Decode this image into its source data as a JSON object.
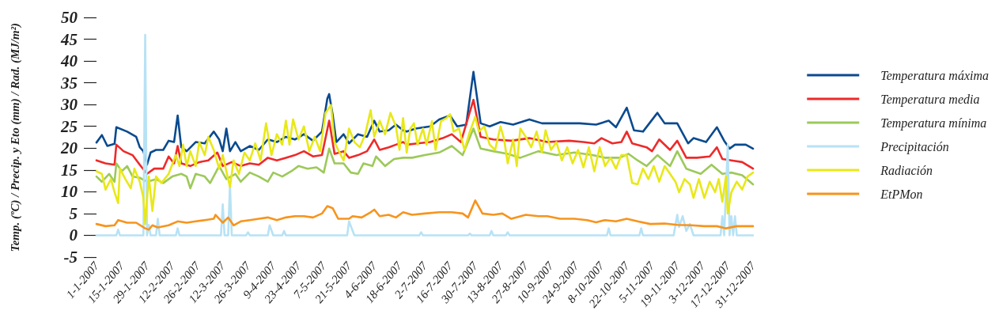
{
  "chart_data": {
    "type": "line",
    "ylabel": "Temp. (ºC) / Precip. y Eto (mm) / Rad. (MJ/m²)",
    "legend": "right",
    "grid": false,
    "marker": "none",
    "line_style": "solid",
    "xlim": [
      "2007-01-01",
      "2007-12-31"
    ],
    "xticks": [
      {
        "value": "2007-01-01",
        "label": "1-1-2007"
      },
      {
        "value": "2007-01-15",
        "label": "15-1-2007"
      },
      {
        "value": "2007-01-29",
        "label": "29-1-2007"
      },
      {
        "value": "2007-02-12",
        "label": "12-2-2007"
      },
      {
        "value": "2007-02-26",
        "label": "26-2-2007"
      },
      {
        "value": "2007-03-12",
        "label": "12-3-2007"
      },
      {
        "value": "2007-03-26",
        "label": "26-3-2007"
      },
      {
        "value": "2007-04-09",
        "label": "9-4-2007"
      },
      {
        "value": "2007-04-23",
        "label": "23-4-2007"
      },
      {
        "value": "2007-05-07",
        "label": "7-5-2007"
      },
      {
        "value": "2007-05-21",
        "label": "21-5-2007"
      },
      {
        "value": "2007-06-04",
        "label": "4-6-2007"
      },
      {
        "value": "2007-06-18",
        "label": "18-6-2007"
      },
      {
        "value": "2007-07-02",
        "label": "2-7-2007"
      },
      {
        "value": "2007-07-16",
        "label": "16-7-2007"
      },
      {
        "value": "2007-07-30",
        "label": "30-7-2007"
      },
      {
        "value": "2007-08-13",
        "label": "13-8-2007"
      },
      {
        "value": "2007-08-27",
        "label": "27-8-2007"
      },
      {
        "value": "2007-09-10",
        "label": "10-9-2007"
      },
      {
        "value": "2007-09-24",
        "label": "24-9-2007"
      },
      {
        "value": "2007-10-08",
        "label": "8-10-2007"
      },
      {
        "value": "2007-10-22",
        "label": "22-10-2007"
      },
      {
        "value": "2007-11-05",
        "label": "5-11-2007"
      },
      {
        "value": "2007-11-19",
        "label": "19-11-2007"
      },
      {
        "value": "2007-12-03",
        "label": "3-12-2007"
      },
      {
        "value": "2007-12-17",
        "label": "17-12-2007"
      },
      {
        "value": "2007-12-31",
        "label": "31-12-2007"
      }
    ],
    "ylim": [
      -5,
      50
    ],
    "yticks": [
      -5,
      0,
      5,
      10,
      15,
      20,
      25,
      30,
      35,
      40,
      45,
      50
    ],
    "series": [
      {
        "name": "Temperatura máxima",
        "color": "#0a4a8f",
        "x": [
          "2007-01-01",
          "2007-01-04",
          "2007-01-07",
          "2007-01-11",
          "2007-01-12",
          "2007-01-18",
          "2007-01-23",
          "2007-01-25",
          "2007-01-27",
          "2007-01-29",
          "2007-01-31",
          "2007-02-03",
          "2007-02-07",
          "2007-02-10",
          "2007-02-13",
          "2007-02-15",
          "2007-02-17",
          "2007-02-20",
          "2007-02-25",
          "2007-03-02",
          "2007-03-07",
          "2007-03-10",
          "2007-03-12",
          "2007-03-14",
          "2007-03-16",
          "2007-03-19",
          "2007-03-22",
          "2007-03-27",
          "2007-04-01",
          "2007-04-06",
          "2007-04-11",
          "2007-04-16",
          "2007-04-21",
          "2007-04-26",
          "2007-05-01",
          "2007-05-06",
          "2007-05-09",
          "2007-05-10",
          "2007-05-12",
          "2007-05-14",
          "2007-05-18",
          "2007-05-21",
          "2007-05-26",
          "2007-05-31",
          "2007-06-04",
          "2007-06-07",
          "2007-06-12",
          "2007-06-16",
          "2007-06-20",
          "2007-06-22",
          "2007-06-27",
          "2007-07-05",
          "2007-07-10",
          "2007-07-16",
          "2007-07-20",
          "2007-07-25",
          "2007-07-29",
          "2007-08-02",
          "2007-08-07",
          "2007-08-13",
          "2007-08-20",
          "2007-08-29",
          "2007-09-05",
          "2007-09-14",
          "2007-09-26",
          "2007-10-05",
          "2007-10-12",
          "2007-10-16",
          "2007-10-22",
          "2007-10-26",
          "2007-10-31",
          "2007-11-08",
          "2007-11-12",
          "2007-11-19",
          "2007-11-25",
          "2007-11-28",
          "2007-12-05",
          "2007-12-11",
          "2007-12-15",
          "2007-12-18",
          "2007-12-21",
          "2007-12-27",
          "2007-12-31"
        ],
        "values": [
          21.3,
          23,
          20.5,
          21,
          24.8,
          23.8,
          22.6,
          20.2,
          19.3,
          16.2,
          19,
          19.6,
          19.6,
          21.7,
          21.4,
          27.5,
          20.2,
          19.3,
          21.4,
          21.1,
          23.8,
          22,
          19.3,
          24.5,
          19.3,
          21.4,
          19.3,
          20.5,
          19.6,
          22,
          21.4,
          22.6,
          22,
          23.2,
          21.7,
          23.8,
          31.4,
          32.4,
          27.5,
          21.4,
          23.2,
          21.1,
          23.2,
          22.6,
          26.3,
          23.8,
          24.1,
          25.4,
          24.1,
          23.8,
          24.5,
          25,
          26.6,
          27.5,
          25,
          25.4,
          37.5,
          25.7,
          25,
          26,
          25.4,
          26.6,
          25.7,
          25.7,
          25.7,
          25.4,
          26.3,
          24.8,
          29.3,
          24.1,
          23.8,
          28.1,
          25.7,
          25.7,
          21.1,
          22.3,
          21.4,
          24.8,
          21.7,
          19.9,
          20.8,
          20.8,
          19.9
        ]
      },
      {
        "name": "Temperatura media",
        "color": "#ee2a2a",
        "x": [
          "2007-01-01",
          "2007-01-06",
          "2007-01-11",
          "2007-01-12",
          "2007-01-16",
          "2007-01-21",
          "2007-01-25",
          "2007-01-29",
          "2007-02-02",
          "2007-02-07",
          "2007-02-10",
          "2007-02-13",
          "2007-02-15",
          "2007-02-17",
          "2007-02-22",
          "2007-02-27",
          "2007-03-04",
          "2007-03-09",
          "2007-03-12",
          "2007-03-17",
          "2007-03-22",
          "2007-03-27",
          "2007-04-01",
          "2007-04-06",
          "2007-04-11",
          "2007-04-16",
          "2007-04-21",
          "2007-04-26",
          "2007-05-01",
          "2007-05-06",
          "2007-05-10",
          "2007-05-13",
          "2007-05-18",
          "2007-05-21",
          "2007-05-26",
          "2007-05-31",
          "2007-06-04",
          "2007-06-07",
          "2007-06-12",
          "2007-06-16",
          "2007-06-20",
          "2007-06-22",
          "2007-06-28",
          "2007-07-05",
          "2007-07-12",
          "2007-07-17",
          "2007-07-22",
          "2007-07-29",
          "2007-08-02",
          "2007-08-09",
          "2007-08-19",
          "2007-08-29",
          "2007-09-08",
          "2007-09-20",
          "2007-09-28",
          "2007-10-04",
          "2007-10-08",
          "2007-10-14",
          "2007-10-19",
          "2007-10-22",
          "2007-10-25",
          "2007-11-02",
          "2007-11-05",
          "2007-11-09",
          "2007-11-15",
          "2007-11-19",
          "2007-11-24",
          "2007-11-30",
          "2007-12-07",
          "2007-12-11",
          "2007-12-14",
          "2007-12-19",
          "2007-12-25",
          "2007-12-31"
        ],
        "values": [
          17.2,
          16.5,
          16.2,
          20.8,
          19.3,
          18.4,
          16.2,
          14.1,
          15.3,
          15.3,
          18.1,
          16.5,
          20.5,
          16.5,
          15.9,
          16.8,
          17.2,
          19,
          15.9,
          16.8,
          15.9,
          16.5,
          16.2,
          17.8,
          17.2,
          17.8,
          18.4,
          19.3,
          18.1,
          18.4,
          26.3,
          18.7,
          19.3,
          17.8,
          18.4,
          19.3,
          22,
          19.6,
          20.2,
          20.8,
          21.4,
          20.8,
          21.1,
          21.4,
          22.3,
          23.2,
          21.4,
          31.1,
          22.6,
          22,
          21.7,
          22.3,
          21.4,
          21.7,
          21.4,
          21.1,
          22.3,
          21.1,
          21.4,
          23.8,
          21.1,
          20.2,
          19.3,
          22,
          19.6,
          21.7,
          17.8,
          17.8,
          18.1,
          20.2,
          17.5,
          17.2,
          16.8,
          15.3
        ]
      },
      {
        "name": "Temperatura mínima",
        "color": "#9dc95a",
        "x": [
          "2007-01-01",
          "2007-01-04",
          "2007-01-08",
          "2007-01-11",
          "2007-01-12",
          "2007-01-15",
          "2007-01-18",
          "2007-01-21",
          "2007-01-25",
          "2007-01-29",
          "2007-02-03",
          "2007-02-07",
          "2007-02-12",
          "2007-02-17",
          "2007-02-20",
          "2007-02-22",
          "2007-02-25",
          "2007-03-02",
          "2007-03-05",
          "2007-03-10",
          "2007-03-14",
          "2007-03-19",
          "2007-03-22",
          "2007-03-27",
          "2007-04-01",
          "2007-04-06",
          "2007-04-09",
          "2007-04-14",
          "2007-04-19",
          "2007-04-23",
          "2007-04-28",
          "2007-05-03",
          "2007-05-07",
          "2007-05-10",
          "2007-05-13",
          "2007-05-18",
          "2007-05-22",
          "2007-05-26",
          "2007-05-29",
          "2007-06-03",
          "2007-06-05",
          "2007-06-10",
          "2007-06-15",
          "2007-06-20",
          "2007-06-25",
          "2007-07-02",
          "2007-07-10",
          "2007-07-17",
          "2007-07-23",
          "2007-07-29",
          "2007-08-02",
          "2007-08-09",
          "2007-08-17",
          "2007-08-24",
          "2007-09-03",
          "2007-09-13",
          "2007-09-23",
          "2007-10-03",
          "2007-10-10",
          "2007-10-18",
          "2007-10-23",
          "2007-10-28",
          "2007-11-02",
          "2007-11-08",
          "2007-11-15",
          "2007-11-19",
          "2007-11-24",
          "2007-12-02",
          "2007-12-08",
          "2007-12-14",
          "2007-12-19",
          "2007-12-25",
          "2007-12-31"
        ],
        "values": [
          13.5,
          12.3,
          14.1,
          12.3,
          16.5,
          14.7,
          15.9,
          13.5,
          13.2,
          12.3,
          12.9,
          12,
          13.5,
          14.1,
          13.5,
          10.8,
          14.1,
          13.5,
          12,
          15.9,
          12.9,
          14.1,
          12.3,
          14.4,
          13.5,
          12.3,
          14.4,
          13.5,
          14.7,
          15.9,
          15.3,
          15.6,
          14.4,
          19.9,
          16.5,
          16.5,
          14.4,
          14.1,
          16.5,
          15.9,
          18.1,
          15.9,
          17.5,
          17.8,
          17.8,
          18.4,
          19,
          20.5,
          18.4,
          24.5,
          19.9,
          19.3,
          18.7,
          17.8,
          19.3,
          18.4,
          19,
          18.4,
          17.8,
          17.8,
          18.7,
          17.2,
          15.9,
          18.4,
          15.9,
          19.3,
          15.3,
          14.1,
          16.2,
          14.1,
          14.4,
          13.8,
          11.7
        ]
      },
      {
        "name": "Precipitación",
        "color": "#b7e2f5",
        "x": [
          "2007-01-01",
          "2007-01-12",
          "2007-01-13",
          "2007-01-14",
          "2007-01-27",
          "2007-01-28",
          "2007-01-29",
          "2007-01-30",
          "2007-01-31",
          "2007-02-03",
          "2007-02-04",
          "2007-02-05",
          "2007-02-14",
          "2007-02-15",
          "2007-02-16",
          "2007-03-11",
          "2007-03-12",
          "2007-03-13",
          "2007-03-15",
          "2007-03-16",
          "2007-03-17",
          "2007-03-25",
          "2007-03-26",
          "2007-03-27",
          "2007-04-06",
          "2007-04-07",
          "2007-04-09",
          "2007-04-14",
          "2007-04-15",
          "2007-04-16",
          "2007-05-20",
          "2007-05-21",
          "2007-05-24",
          "2007-06-29",
          "2007-06-30",
          "2007-07-01",
          "2007-07-26",
          "2007-07-27",
          "2007-07-28",
          "2007-08-07",
          "2007-08-08",
          "2007-08-09",
          "2007-08-16",
          "2007-08-17",
          "2007-08-18",
          "2007-10-11",
          "2007-10-12",
          "2007-10-13",
          "2007-10-29",
          "2007-10-30",
          "2007-10-31",
          "2007-11-17",
          "2007-11-19",
          "2007-11-20",
          "2007-11-22",
          "2007-11-24",
          "2007-11-26",
          "2007-11-28",
          "2007-12-13",
          "2007-12-14",
          "2007-12-15",
          "2007-12-17",
          "2007-12-18",
          "2007-12-19",
          "2007-12-20",
          "2007-12-21",
          "2007-12-22",
          "2007-12-31"
        ],
        "values": [
          0,
          0,
          1.3,
          0,
          0,
          46,
          0,
          2.4,
          0,
          0,
          3.8,
          0,
          0,
          1.6,
          0,
          0,
          7.1,
          0,
          0,
          11.7,
          0,
          0,
          0.7,
          0,
          0,
          2.3,
          0,
          0,
          1,
          0,
          0,
          3.2,
          0,
          0,
          0.7,
          0,
          0,
          0.4,
          0,
          0,
          1,
          0,
          0,
          0.7,
          0,
          0,
          1.6,
          0,
          0,
          1.6,
          0,
          0,
          4.7,
          1.9,
          4.4,
          1,
          2.6,
          0,
          0,
          4.4,
          0,
          20.8,
          0,
          4.4,
          0,
          4.4,
          0,
          0
        ]
      },
      {
        "name": "Radiación",
        "color": "#e8e81a",
        "x": [
          "2007-01-01",
          "2007-01-04",
          "2007-01-06",
          "2007-01-09",
          "2007-01-11",
          "2007-01-13",
          "2007-01-14",
          "2007-01-17",
          "2007-01-20",
          "2007-01-22",
          "2007-01-25",
          "2007-01-27",
          "2007-01-28",
          "2007-01-30",
          "2007-02-01",
          "2007-02-03",
          "2007-02-06",
          "2007-02-10",
          "2007-02-14",
          "2007-02-16",
          "2007-02-18",
          "2007-02-20",
          "2007-02-22",
          "2007-02-25",
          "2007-02-27",
          "2007-03-02",
          "2007-03-04",
          "2007-03-07",
          "2007-03-10",
          "2007-03-12",
          "2007-03-14",
          "2007-03-16",
          "2007-03-18",
          "2007-03-21",
          "2007-03-24",
          "2007-03-27",
          "2007-03-30",
          "2007-04-02",
          "2007-04-05",
          "2007-04-08",
          "2007-04-11",
          "2007-04-14",
          "2007-04-16",
          "2007-04-18",
          "2007-04-20",
          "2007-04-23",
          "2007-04-26",
          "2007-04-29",
          "2007-05-02",
          "2007-05-05",
          "2007-05-08",
          "2007-05-11",
          "2007-05-13",
          "2007-05-15",
          "2007-05-18",
          "2007-05-21",
          "2007-05-24",
          "2007-05-27",
          "2007-05-30",
          "2007-06-02",
          "2007-06-04",
          "2007-06-07",
          "2007-06-10",
          "2007-06-13",
          "2007-06-16",
          "2007-06-18",
          "2007-06-20",
          "2007-06-22",
          "2007-06-24",
          "2007-06-26",
          "2007-06-28",
          "2007-07-01",
          "2007-07-03",
          "2007-07-06",
          "2007-07-08",
          "2007-07-11",
          "2007-07-14",
          "2007-07-16",
          "2007-07-18",
          "2007-07-21",
          "2007-07-24",
          "2007-07-27",
          "2007-07-30",
          "2007-08-01",
          "2007-08-04",
          "2007-08-07",
          "2007-08-10",
          "2007-08-13",
          "2007-08-15",
          "2007-08-17",
          "2007-08-20",
          "2007-08-22",
          "2007-08-24",
          "2007-08-27",
          "2007-08-30",
          "2007-09-02",
          "2007-09-05",
          "2007-09-07",
          "2007-09-10",
          "2007-09-13",
          "2007-09-16",
          "2007-09-19",
          "2007-09-22",
          "2007-09-25",
          "2007-09-28",
          "2007-10-01",
          "2007-10-04",
          "2007-10-07",
          "2007-10-10",
          "2007-10-13",
          "2007-10-16",
          "2007-10-19",
          "2007-10-22",
          "2007-10-25",
          "2007-10-28",
          "2007-10-31",
          "2007-11-03",
          "2007-11-06",
          "2007-11-09",
          "2007-11-12",
          "2007-11-15",
          "2007-11-18",
          "2007-11-20",
          "2007-11-23",
          "2007-11-26",
          "2007-11-28",
          "2007-12-01",
          "2007-12-04",
          "2007-12-07",
          "2007-12-10",
          "2007-12-12",
          "2007-12-14",
          "2007-12-16",
          "2007-12-17",
          "2007-12-19",
          "2007-12-22",
          "2007-12-25",
          "2007-12-28",
          "2007-12-31"
        ],
        "values": [
          14.7,
          14.1,
          10.5,
          12.9,
          9.9,
          7.4,
          15.3,
          12.9,
          10.8,
          15.3,
          12.3,
          8.6,
          2.6,
          13.5,
          5.6,
          13.5,
          12,
          14.1,
          18.4,
          15.9,
          20.8,
          15.9,
          19.3,
          15.9,
          21.4,
          18.4,
          22.6,
          19.6,
          15.3,
          18.4,
          14.7,
          11.1,
          17.2,
          14.1,
          19,
          17.2,
          21.1,
          17.2,
          25.7,
          18.4,
          23.2,
          20.8,
          26.3,
          20.8,
          26.6,
          22,
          25,
          19.3,
          22.6,
          19.3,
          28.1,
          29.9,
          21.4,
          19.6,
          17.2,
          24.5,
          21.4,
          20.2,
          23.2,
          28.7,
          22.6,
          26.3,
          23.2,
          28.1,
          25,
          19.6,
          26.9,
          19,
          24.5,
          25.7,
          20.8,
          24.5,
          20.8,
          26.2,
          19.6,
          26.2,
          26.9,
          27.8,
          23.8,
          24.5,
          19.6,
          23.8,
          27.2,
          23.8,
          25,
          20.8,
          19.6,
          25,
          22,
          16.5,
          22,
          15.9,
          24.5,
          22.6,
          20.2,
          23.8,
          19,
          24.1,
          19.6,
          21.4,
          17.2,
          20.2,
          16.5,
          19.6,
          15.6,
          20.2,
          14.7,
          20.2,
          15.9,
          17.8,
          15.3,
          18.4,
          18.4,
          12,
          11.7,
          15.3,
          12.9,
          15.9,
          12.3,
          15.9,
          14.1,
          12.3,
          9.9,
          12.9,
          11.7,
          8.6,
          12.9,
          8.6,
          12.3,
          9.9,
          12.9,
          7.7,
          13.5,
          5,
          9.9,
          12.3,
          10.5,
          13.5,
          14.4
        ]
      },
      {
        "name": "EtPMon",
        "color": "#f7941d",
        "x": [
          "2007-01-01",
          "2007-01-06",
          "2007-01-11",
          "2007-01-13",
          "2007-01-18",
          "2007-01-23",
          "2007-01-28",
          "2007-01-30",
          "2007-02-01",
          "2007-02-04",
          "2007-02-10",
          "2007-02-15",
          "2007-02-20",
          "2007-02-25",
          "2007-03-02",
          "2007-03-07",
          "2007-03-08",
          "2007-03-12",
          "2007-03-15",
          "2007-03-18",
          "2007-03-22",
          "2007-03-27",
          "2007-04-01",
          "2007-04-06",
          "2007-04-11",
          "2007-04-16",
          "2007-04-21",
          "2007-04-26",
          "2007-05-01",
          "2007-05-06",
          "2007-05-09",
          "2007-05-12",
          "2007-05-15",
          "2007-05-21",
          "2007-05-23",
          "2007-05-28",
          "2007-06-02",
          "2007-06-04",
          "2007-06-07",
          "2007-06-12",
          "2007-06-16",
          "2007-06-20",
          "2007-06-25",
          "2007-07-02",
          "2007-07-10",
          "2007-07-17",
          "2007-07-23",
          "2007-07-26",
          "2007-07-30",
          "2007-08-03",
          "2007-08-09",
          "2007-08-14",
          "2007-08-19",
          "2007-08-27",
          "2007-09-03",
          "2007-09-08",
          "2007-09-15",
          "2007-09-23",
          "2007-09-30",
          "2007-10-05",
          "2007-10-10",
          "2007-10-16",
          "2007-10-22",
          "2007-10-28",
          "2007-11-04",
          "2007-11-12",
          "2007-11-19",
          "2007-11-27",
          "2007-12-04",
          "2007-12-11",
          "2007-12-16",
          "2007-12-22",
          "2007-12-31"
        ],
        "values": [
          2.6,
          2.1,
          2.3,
          3.5,
          2.9,
          2.9,
          1.6,
          1.3,
          2.3,
          1.8,
          2.3,
          3.2,
          2.9,
          3.2,
          3.5,
          3.8,
          4.7,
          2.9,
          4.1,
          2.3,
          3.2,
          3.5,
          3.8,
          4.1,
          3.5,
          4.1,
          4.4,
          4.4,
          4.1,
          5,
          6.7,
          6.2,
          3.8,
          3.8,
          4.4,
          4.1,
          5.3,
          5.9,
          4.4,
          4.7,
          4.1,
          5.3,
          4.7,
          5,
          5.3,
          5.3,
          5,
          4.1,
          8,
          5,
          4.7,
          5,
          3.8,
          4.7,
          4.4,
          4.4,
          3.8,
          3.8,
          3.5,
          3,
          3.5,
          3.2,
          3.8,
          3.2,
          2.6,
          2.7,
          2.4,
          2.3,
          2.1,
          2.1,
          1.6,
          2.1,
          2.1
        ]
      }
    ]
  }
}
